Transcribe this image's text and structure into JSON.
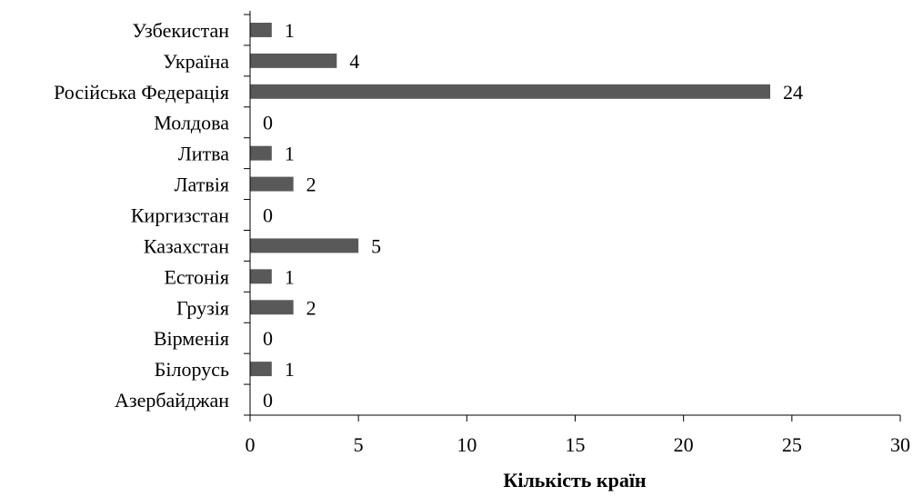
{
  "chart_data": {
    "type": "bar",
    "orientation": "horizontal",
    "categories": [
      "Узбекистан",
      "Україна",
      "Російська Федерація",
      "Молдова",
      "Литва",
      "Латвія",
      "Киргизстан",
      "Казахстан",
      "Естонія",
      "Грузія",
      "Вірменія",
      "Білорусь",
      "Азербайджан"
    ],
    "values": [
      1,
      4,
      24,
      0,
      1,
      2,
      0,
      5,
      1,
      2,
      0,
      1,
      0
    ],
    "data_labels": [
      "1",
      "4",
      "24",
      "0",
      "1",
      "2",
      "0",
      "5",
      "1",
      "2",
      "0",
      "1",
      "0"
    ],
    "xlabel": "Кількість країн",
    "ylabel": "",
    "xlim": [
      0,
      30
    ],
    "xticks": [
      0,
      5,
      10,
      15,
      20,
      25,
      30
    ],
    "xtick_labels": [
      "0",
      "5",
      "10",
      "15",
      "20",
      "25",
      "30"
    ],
    "grid": false,
    "legend": "none",
    "bar_color": "#595959"
  }
}
